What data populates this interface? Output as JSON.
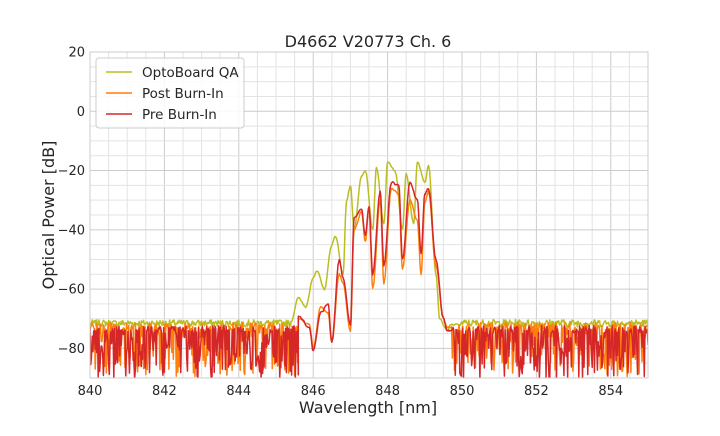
{
  "chart_data": {
    "type": "line",
    "title": "D4662 V20773 Ch. 6",
    "xlabel": "Wavelength [nm]",
    "ylabel": "Optical Power [dB]",
    "xlim": [
      840,
      855
    ],
    "ylim": [
      -90,
      20
    ],
    "xticks": [
      "840",
      "842",
      "844",
      "846",
      "848",
      "850",
      "852",
      "854"
    ],
    "yticks": [
      "20",
      "0",
      "−20",
      "−40",
      "−60",
      "−80"
    ],
    "grid": true,
    "legend_position": "top-left",
    "series": [
      {
        "name": "OptoBoard QA",
        "color": "#bcbd22",
        "noise_floor": -71.5,
        "noise_spread": 3,
        "x": [
          845.4,
          845.6,
          845.8,
          846.0,
          846.1,
          846.3,
          846.5,
          846.6,
          846.8,
          846.9,
          847.0,
          847.1,
          847.3,
          847.4,
          847.6,
          847.7,
          847.9,
          848.0,
          848.2,
          848.4,
          848.5,
          848.7,
          848.8,
          849.0,
          849.1,
          849.3,
          849.4,
          849.6,
          849.7,
          849.9
        ],
        "y": [
          -71,
          -63,
          -66,
          -56,
          -54,
          -60,
          -45,
          -42,
          -55,
          -30,
          -25,
          -40,
          -22,
          -20,
          -40,
          -19,
          -38,
          -17,
          -20,
          -40,
          -21,
          -38,
          -17,
          -24,
          -18,
          -55,
          -70,
          -74,
          -72,
          -72
        ]
      },
      {
        "name": "Post Burn-In",
        "color": "#ff7f0e",
        "noise_floor": -72.5,
        "noise_spread": 17,
        "x": [
          845.6,
          845.9,
          846.0,
          846.2,
          846.4,
          846.5,
          846.7,
          846.8,
          847.0,
          847.1,
          847.3,
          847.4,
          847.5,
          847.6,
          847.8,
          847.9,
          848.1,
          848.3,
          848.4,
          848.6,
          848.8,
          848.9,
          849.0,
          849.1,
          849.3,
          849.5,
          849.6,
          849.7
        ],
        "y": [
          -70,
          -72,
          -80,
          -66,
          -68,
          -78,
          -55,
          -58,
          -74,
          -40,
          -34,
          -44,
          -32,
          -60,
          -30,
          -58,
          -26,
          -28,
          -53,
          -30,
          -37,
          -55,
          -31,
          -27,
          -52,
          -70,
          -73,
          -73
        ]
      },
      {
        "name": "Pre Burn-In",
        "color": "#d62728",
        "noise_floor": -73.5,
        "noise_spread": 17,
        "x": [
          845.6,
          845.9,
          846.0,
          846.2,
          846.4,
          846.5,
          846.7,
          846.8,
          847.0,
          847.1,
          847.3,
          847.4,
          847.5,
          847.6,
          847.8,
          847.9,
          848.1,
          848.3,
          848.4,
          848.6,
          848.8,
          848.9,
          849.0,
          849.1,
          849.3,
          849.5,
          849.6,
          849.7
        ],
        "y": [
          -69,
          -73,
          -81,
          -68,
          -65,
          -78,
          -50,
          -56,
          -72,
          -36,
          -33,
          -42,
          -32,
          -55,
          -27,
          -52,
          -24,
          -25,
          -50,
          -24,
          -30,
          -48,
          -28,
          -26,
          -50,
          -70,
          -74,
          -74
        ]
      }
    ]
  }
}
